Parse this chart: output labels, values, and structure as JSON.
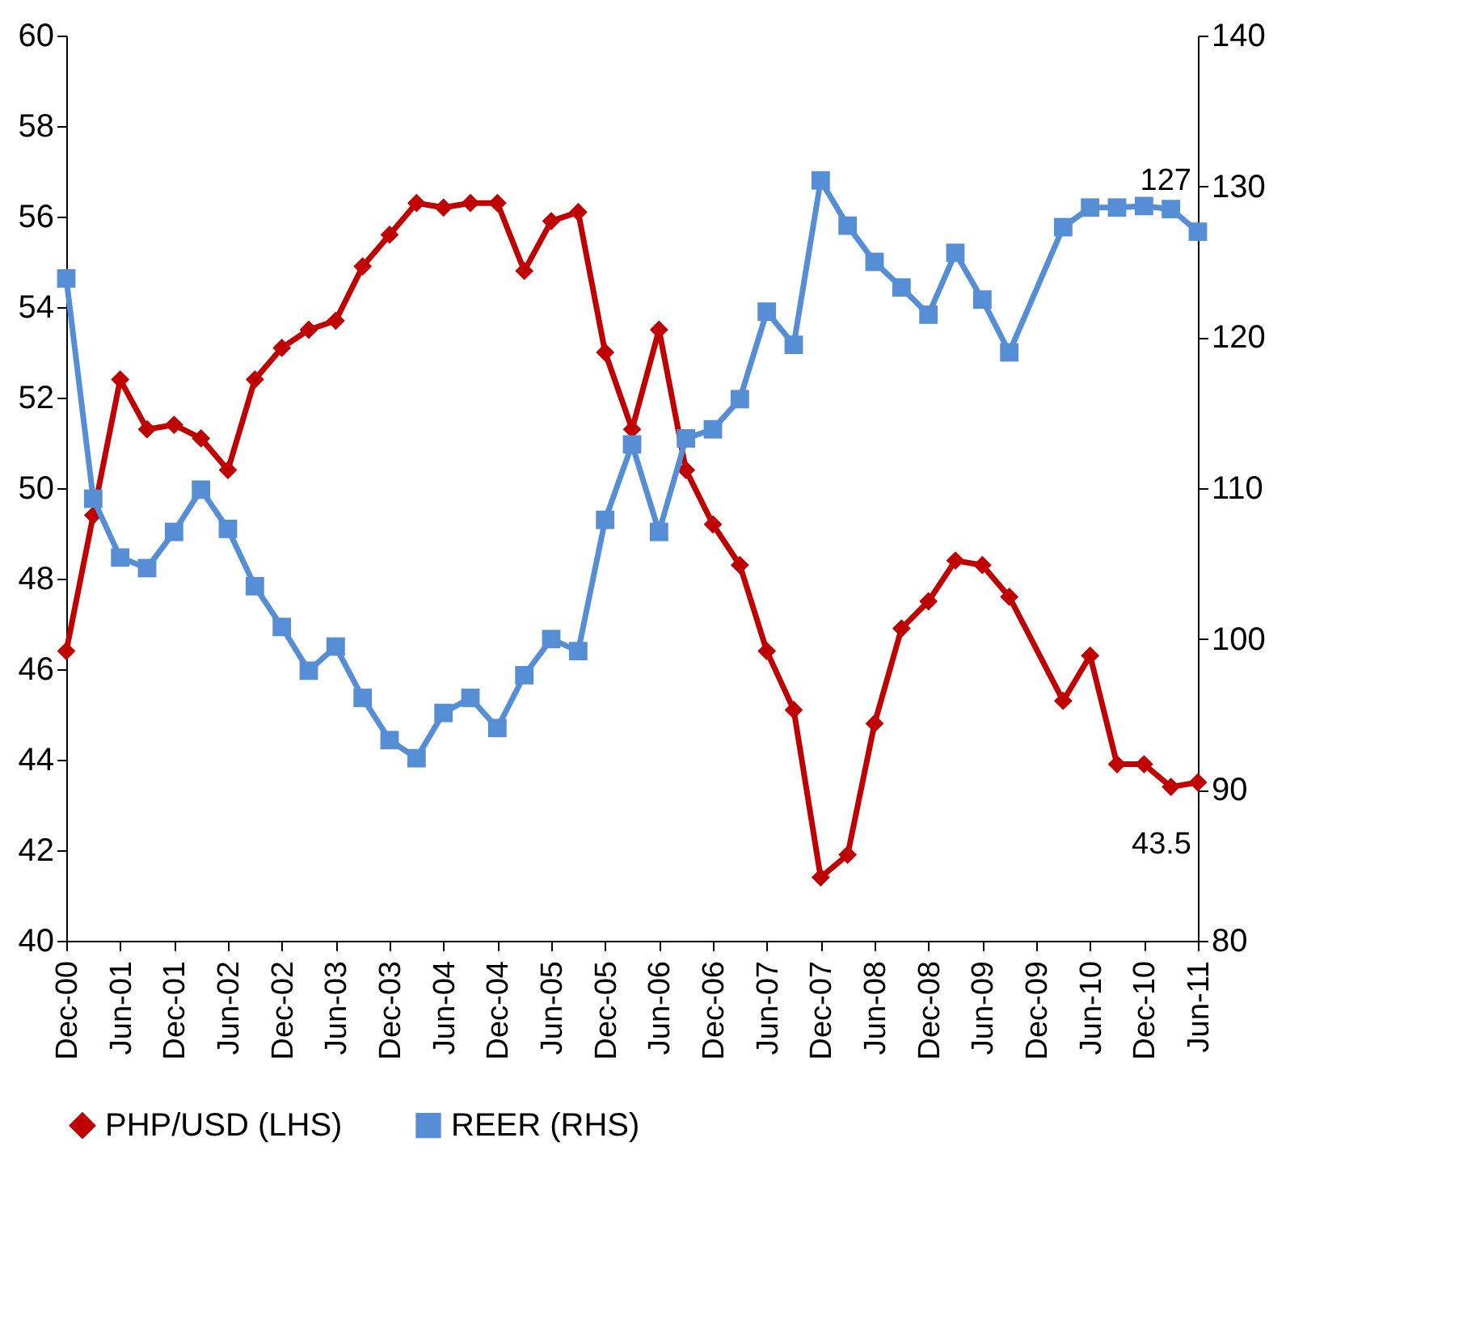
{
  "chart_data": {
    "type": "line",
    "categories": [
      "Dec-00",
      null,
      "Jun-01",
      null,
      "Dec-01",
      null,
      "Jun-02",
      null,
      "Dec-02",
      null,
      "Jun-03",
      null,
      "Dec-03",
      null,
      "Jun-04",
      null,
      "Dec-04",
      null,
      "Jun-05",
      null,
      "Dec-05",
      null,
      "Jun-06",
      null,
      "Dec-06",
      null,
      "Jun-07",
      null,
      "Dec-07",
      null,
      "Jun-08",
      null,
      "Dec-08",
      null,
      "Jun-09",
      null,
      "Dec-09",
      null,
      "Jun-10",
      null,
      "Dec-10",
      null,
      "Jun-11"
    ],
    "series": [
      {
        "name": "PHP/USD (LHS)",
        "color": "#c00000",
        "marker": "diamond",
        "values": [
          46.4,
          49.4,
          52.4,
          51.3,
          51.4,
          51.1,
          50.4,
          52.4,
          53.1,
          53.5,
          53.7,
          54.9,
          55.6,
          56.3,
          56.2,
          56.3,
          56.3,
          54.8,
          55.9,
          56.1,
          53.0,
          51.3,
          53.5,
          50.4,
          49.2,
          48.3,
          46.4,
          45.1,
          41.4,
          41.9,
          44.8,
          46.9,
          47.5,
          48.4,
          48.3,
          47.6,
          null,
          45.3,
          46.3,
          43.9,
          43.9,
          43.4,
          43.5
        ],
        "value_labels": [
          null,
          null,
          null,
          null,
          null,
          null,
          null,
          null,
          null,
          null,
          null,
          null,
          null,
          null,
          null,
          null,
          null,
          null,
          null,
          null,
          null,
          null,
          null,
          null,
          null,
          null,
          null,
          null,
          null,
          null,
          null,
          null,
          null,
          null,
          null,
          null,
          null,
          null,
          null,
          null,
          null,
          null,
          "43.5"
        ]
      },
      {
        "name": "REER (RHS)",
        "color": "#558ed5",
        "marker": "square",
        "axis": "y2",
        "values": [
          123.9,
          109.3,
          105.4,
          104.7,
          107.1,
          109.9,
          107.3,
          103.5,
          100.8,
          97.9,
          99.5,
          96.1,
          93.3,
          92.1,
          95.1,
          96.1,
          94.1,
          97.6,
          100.0,
          99.2,
          107.9,
          112.9,
          107.1,
          113.3,
          113.9,
          115.9,
          121.7,
          119.5,
          130.4,
          127.4,
          125.0,
          123.3,
          121.5,
          125.6,
          122.5,
          119.0,
          null,
          127.3,
          128.6,
          128.6,
          128.7,
          128.5,
          127
        ],
        "value_labels": [
          null,
          null,
          null,
          null,
          null,
          null,
          null,
          null,
          null,
          null,
          null,
          null,
          null,
          null,
          null,
          null,
          null,
          null,
          null,
          null,
          null,
          null,
          null,
          null,
          null,
          null,
          null,
          null,
          null,
          null,
          null,
          null,
          null,
          null,
          null,
          null,
          null,
          null,
          null,
          null,
          null,
          null,
          "127"
        ]
      }
    ],
    "ylim": [
      40,
      60
    ],
    "yticks": [
      40,
      42,
      44,
      46,
      48,
      50,
      52,
      54,
      56,
      58,
      60
    ],
    "y2lim": [
      80,
      140
    ],
    "y2ticks": [
      80,
      90,
      100,
      110,
      120,
      130,
      140
    ],
    "grid": false,
    "legend": "bottom",
    "line_style": "solid"
  }
}
